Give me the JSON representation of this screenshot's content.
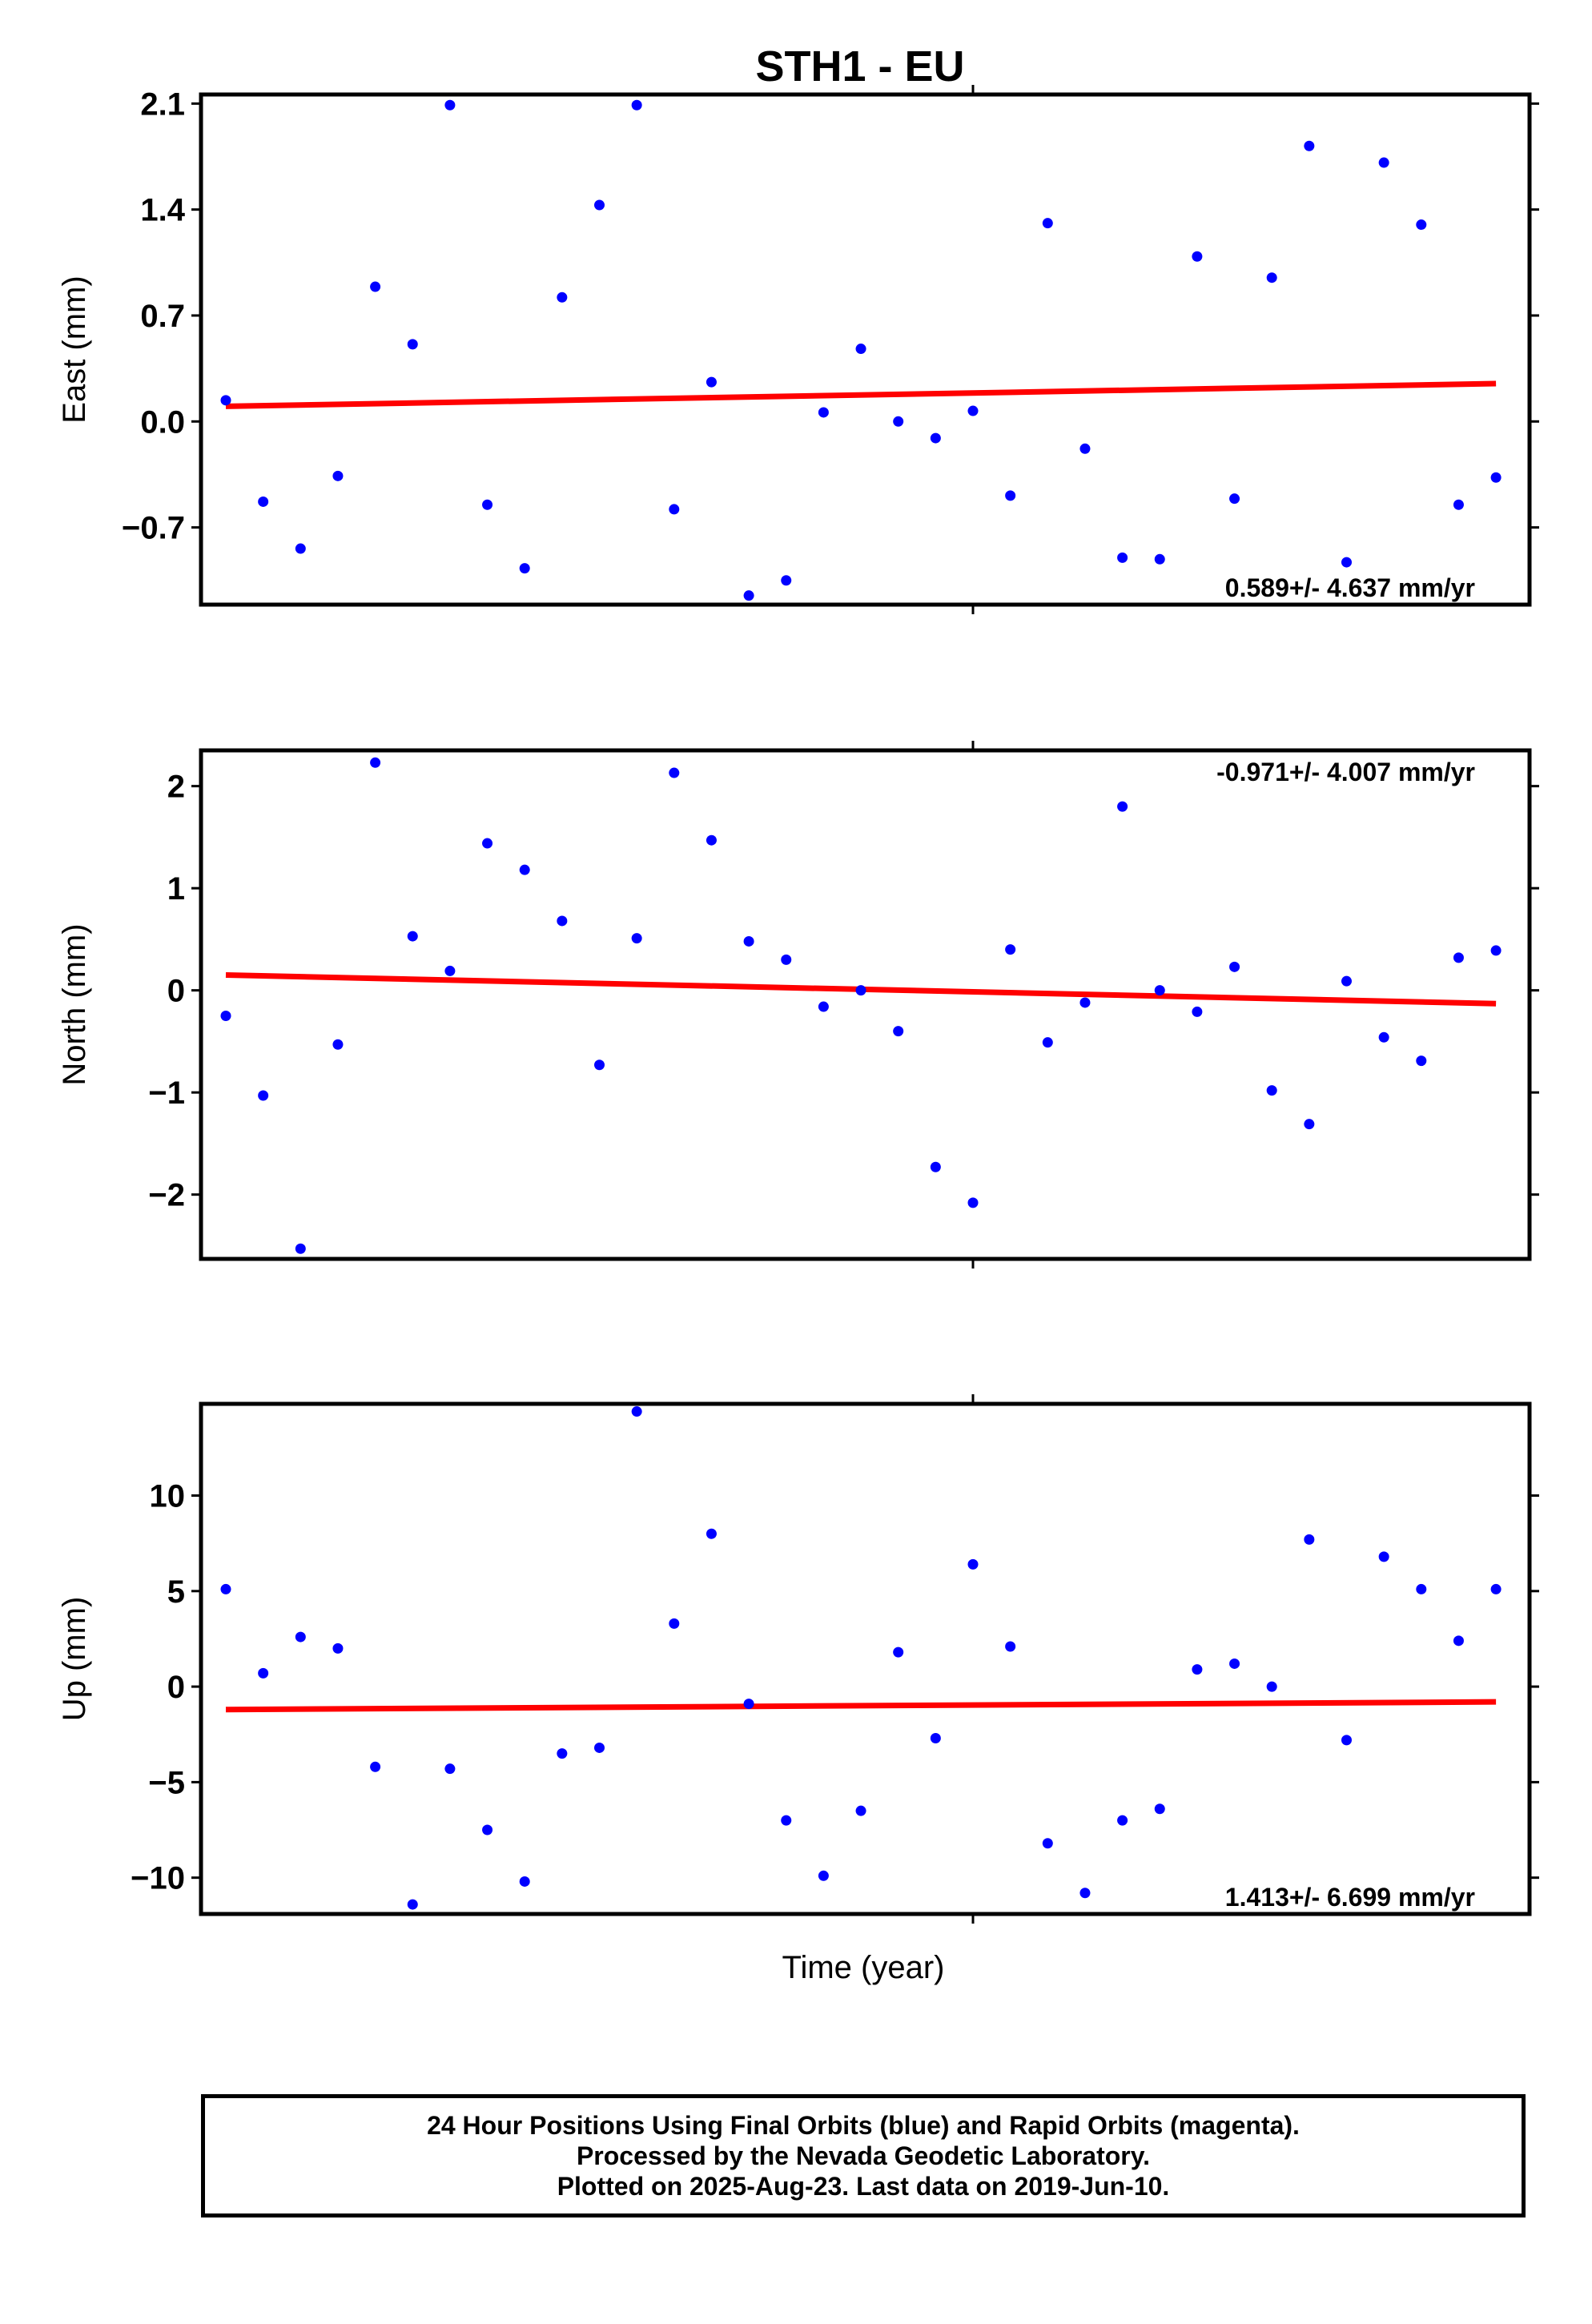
{
  "title": "STH1 - EU",
  "xlabel": "Time (year)",
  "footer": {
    "line1": "24 Hour Positions Using Final Orbits (blue) and Rapid Orbits (magenta).",
    "line2": "Processed by the Nevada Geodetic Laboratory.",
    "line3": "Plotted on 2025-Aug-23. Last data on 2019-Jun-10."
  },
  "colors": {
    "points": "#0000ff",
    "trend": "#ff0000",
    "frame": "#000000"
  },
  "chart_data": [
    {
      "type": "scatter",
      "ylabel": "East (mm)",
      "ylim": [
        -1.21,
        2.16
      ],
      "yticks": [
        2.1,
        1.4,
        0.7,
        0.0,
        -0.7
      ],
      "ytick_labels": [
        "2.1",
        "1.4",
        "0.7",
        "0.0",
        "−0.7"
      ],
      "rate_label": "0.589+/- 4.637 mm/yr",
      "rate_position": "bottom-right",
      "trend": [
        0.1,
        0.25
      ],
      "values": [
        0.14,
        -0.53,
        -0.84,
        -0.36,
        0.89,
        0.51,
        2.09,
        -0.55,
        -0.97,
        0.82,
        1.43,
        2.09,
        -0.58,
        0.26,
        -1.15,
        -1.05,
        0.06,
        0.48,
        0.0,
        -0.11,
        0.07,
        -0.49,
        1.31,
        -0.18,
        -0.9,
        -0.91,
        1.09,
        -0.51,
        0.95,
        1.82,
        -0.93,
        1.71,
        1.3,
        -0.55,
        -0.37
      ]
    },
    {
      "type": "scatter",
      "ylabel": "North (mm)",
      "ylim": [
        -2.63,
        2.35
      ],
      "yticks": [
        2,
        1,
        0,
        -1,
        -2
      ],
      "ytick_labels": [
        "2",
        "1",
        "0",
        "−1",
        "−2"
      ],
      "rate_label": "-0.971+/- 4.007 mm/yr",
      "rate_position": "top-right",
      "trend": [
        0.15,
        -0.13
      ],
      "values": [
        -0.25,
        -1.03,
        -2.53,
        -0.53,
        2.23,
        0.53,
        0.19,
        1.44,
        1.18,
        0.68,
        -0.73,
        0.51,
        2.13,
        1.47,
        0.48,
        0.3,
        -0.16,
        0.0,
        -0.4,
        -1.73,
        -2.08,
        0.4,
        -0.51,
        -0.12,
        1.8,
        0.0,
        -0.21,
        0.23,
        -0.98,
        -1.31,
        0.09,
        -0.46,
        -0.69,
        0.32,
        0.39
      ]
    },
    {
      "type": "scatter",
      "ylabel": "Up (mm)",
      "ylim": [
        -11.9,
        14.8
      ],
      "yticks": [
        10,
        5,
        0,
        -5,
        -10
      ],
      "ytick_labels": [
        "10",
        "5",
        "0",
        "−5",
        "−10"
      ],
      "rate_label": "1.413+/- 6.699 mm/yr",
      "rate_position": "bottom-right",
      "trend": [
        -1.2,
        -0.8
      ],
      "values": [
        5.1,
        0.7,
        2.6,
        2.0,
        -4.2,
        -11.4,
        -4.3,
        -7.5,
        -10.2,
        -3.5,
        -3.2,
        14.4,
        3.3,
        8.0,
        -0.9,
        -7.0,
        -9.9,
        -6.5,
        1.8,
        -2.7,
        6.4,
        2.1,
        -8.2,
        -10.8,
        -7.0,
        -6.4,
        0.9,
        1.2,
        0.0,
        7.7,
        -2.8,
        6.8,
        5.1,
        2.4,
        5.1
      ]
    }
  ]
}
